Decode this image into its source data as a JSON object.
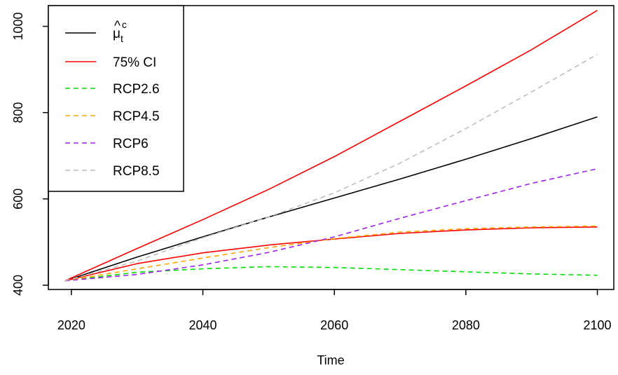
{
  "chart_data": {
    "type": "line",
    "title": "",
    "xlabel": "Time",
    "ylabel": "",
    "xlim": [
      2016.5,
      2102.5
    ],
    "ylim": [
      390,
      1048
    ],
    "x_ticks": [
      2020,
      2040,
      2060,
      2080,
      2100
    ],
    "x_tick_labels": [
      "2020",
      "2040",
      "2060",
      "2080",
      "2100"
    ],
    "y_ticks": [
      400,
      600,
      800,
      1000
    ],
    "y_tick_labels": [
      "400",
      "600",
      "800",
      "1000"
    ],
    "grid": false,
    "legend_position": "top-left",
    "x": [
      2019,
      2030,
      2040,
      2050,
      2060,
      2070,
      2080,
      2090,
      2100
    ],
    "series": [
      {
        "name": "μ̂ₜᶜ",
        "legend_main": "μ",
        "legend_sup": "c",
        "legend_sub": "t",
        "color": "#000000",
        "dash": "solid",
        "values": [
          410,
          465,
          512,
          558,
          602,
          646,
          692,
          740,
          790
        ]
      },
      {
        "name": "75% CI",
        "color": "#ff0000",
        "dash": "solid",
        "values": [
          410,
          485,
          552,
          622,
          698,
          780,
          862,
          946,
          1037
        ]
      },
      {
        "name": "75% CI",
        "color": "#ff0000",
        "dash": "solid",
        "legend": false,
        "values": [
          410,
          450,
          475,
          493,
          507,
          520,
          528,
          533,
          535
        ]
      },
      {
        "name": "RCP2.6",
        "color": "#00dd00",
        "dash": "dashed",
        "values": [
          410,
          430,
          438,
          443,
          441,
          436,
          431,
          426,
          423
        ]
      },
      {
        "name": "RCP4.5",
        "color": "#ffa500",
        "dash": "dashed",
        "values": [
          410,
          438,
          463,
          487,
          508,
          523,
          531,
          535,
          537
        ]
      },
      {
        "name": "RCP6",
        "color": "#a020f0",
        "dash": "dashed",
        "values": [
          410,
          425,
          447,
          476,
          512,
          555,
          596,
          636,
          670
        ]
      },
      {
        "name": "RCP8.5",
        "color": "#bebebe",
        "dash": "dashed",
        "values": [
          410,
          456,
          510,
          558,
          614,
          683,
          763,
          848,
          935
        ]
      }
    ]
  }
}
